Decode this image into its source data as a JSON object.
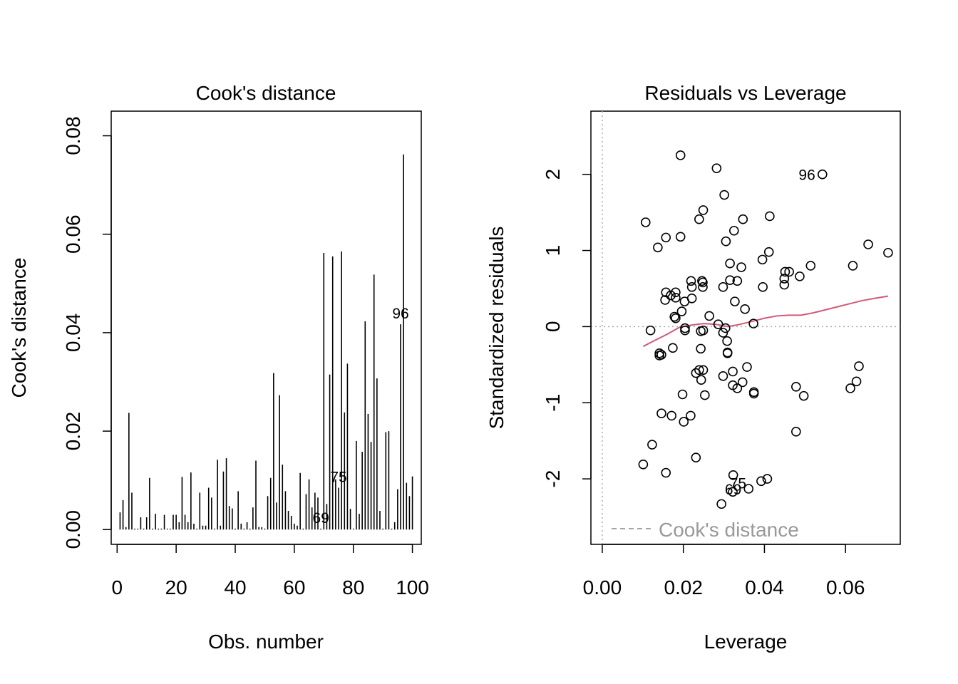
{
  "chart_data": [
    {
      "type": "bar",
      "title": "Cook's distance",
      "xlabel": "Obs. number",
      "ylabel": "Cook's distance",
      "xlim": [
        -2,
        103
      ],
      "ylim": [
        -0.003,
        0.085
      ],
      "x_ticks": [
        "0",
        "20",
        "40",
        "60",
        "80",
        "100"
      ],
      "y_ticks": [
        "0.00",
        "0.02",
        "0.04",
        "0.06",
        "0.08"
      ],
      "bar_color": "#000000",
      "x": [
        1,
        2,
        3,
        4,
        5,
        6,
        7,
        8,
        9,
        10,
        11,
        12,
        13,
        14,
        15,
        16,
        17,
        18,
        19,
        20,
        21,
        22,
        23,
        24,
        25,
        26,
        27,
        28,
        29,
        30,
        31,
        32,
        33,
        34,
        35,
        36,
        37,
        38,
        39,
        40,
        41,
        42,
        43,
        44,
        45,
        46,
        47,
        48,
        49,
        50,
        51,
        52,
        53,
        54,
        55,
        56,
        57,
        58,
        59,
        60,
        61,
        62,
        63,
        64,
        65,
        66,
        67,
        68,
        69,
        70,
        71,
        72,
        73,
        74,
        75,
        76,
        77,
        78,
        79,
        80,
        81,
        82,
        83,
        84,
        85,
        86,
        87,
        88,
        89,
        90,
        91,
        92,
        93,
        94,
        95,
        96,
        97,
        98,
        99,
        100
      ],
      "values": [
        0.0035,
        0.006,
        0.0005,
        0.0237,
        0.0075,
        0.0002,
        0.0002,
        0.0025,
        0.0002,
        0.0025,
        0.0105,
        0.0002,
        0.0032,
        0.0002,
        0.0002,
        0.003,
        0.0002,
        0.0002,
        0.003,
        0.003,
        0.0015,
        0.0107,
        0.003,
        0.0015,
        0.0116,
        0.0012,
        0.0002,
        0.0075,
        0.0008,
        0.0008,
        0.0085,
        0.0065,
        0.0002,
        0.0142,
        0.0008,
        0.0118,
        0.0145,
        0.0048,
        0.0043,
        0.0002,
        0.0078,
        0.0012,
        0.0002,
        0.0015,
        0.0002,
        0.0045,
        0.014,
        0.0005,
        0.0005,
        0.0002,
        0.0068,
        0.0105,
        0.0318,
        0.0055,
        0.0273,
        0.0132,
        0.0078,
        0.0038,
        0.0028,
        0.0012,
        0.0008,
        0.0115,
        0.0002,
        0.0072,
        0.0102,
        0.0045,
        0.0075,
        0.0065,
        0.0002,
        0.0562,
        0.0052,
        0.0315,
        0.0555,
        0.0102,
        0.0085,
        0.0565,
        0.0238,
        0.0337,
        0.0042,
        0.0002,
        0.018,
        0.0032,
        0.0158,
        0.0423,
        0.0235,
        0.0178,
        0.0518,
        0.0307,
        0.0038,
        0.0002,
        0.0198,
        0.02,
        0.0002,
        0.0015,
        0.0082,
        0.0417,
        0.0762,
        0.0095,
        0.0068,
        0.0108
      ],
      "labels": [
        {
          "x": 69,
          "text": "69"
        },
        {
          "x": 75,
          "text": "75"
        },
        {
          "x": 96,
          "text": "96"
        }
      ]
    },
    {
      "type": "scatter",
      "title": "Residuals vs Leverage",
      "xlabel": "Leverage",
      "ylabel": "Standardized residuals",
      "xlim": [
        -0.0028,
        0.0735
      ],
      "ylim": [
        -2.86,
        2.83
      ],
      "x_ticks": [
        "0.00",
        "0.02",
        "0.04",
        "0.06"
      ],
      "y_ticks": [
        "-2",
        "-1",
        "0",
        "1",
        "2"
      ],
      "smooth_color": "#d05a78",
      "legend": {
        "position": "bottom-left",
        "text": "Cook's distance",
        "color": "#999999"
      },
      "points": [
        [
          0.0193,
          2.25
        ],
        [
          0.0282,
          2.08
        ],
        [
          0.0543,
          2.0
        ],
        [
          0.0301,
          1.73
        ],
        [
          0.0249,
          1.53
        ],
        [
          0.0413,
          1.45
        ],
        [
          0.0347,
          1.41
        ],
        [
          0.0239,
          1.41
        ],
        [
          0.0107,
          1.37
        ],
        [
          0.0325,
          1.26
        ],
        [
          0.0157,
          1.17
        ],
        [
          0.0193,
          1.18
        ],
        [
          0.0305,
          1.12
        ],
        [
          0.0656,
          1.08
        ],
        [
          0.0137,
          1.04
        ],
        [
          0.0411,
          0.98
        ],
        [
          0.0705,
          0.97
        ],
        [
          0.0395,
          0.88
        ],
        [
          0.0315,
          0.83
        ],
        [
          0.0514,
          0.8
        ],
        [
          0.0618,
          0.8
        ],
        [
          0.0343,
          0.78
        ],
        [
          0.0451,
          0.72
        ],
        [
          0.0461,
          0.72
        ],
        [
          0.0449,
          0.63
        ],
        [
          0.0487,
          0.66
        ],
        [
          0.0219,
          0.6
        ],
        [
          0.0246,
          0.6
        ],
        [
          0.0248,
          0.58
        ],
        [
          0.0315,
          0.61
        ],
        [
          0.0333,
          0.6
        ],
        [
          0.0449,
          0.55
        ],
        [
          0.0221,
          0.52
        ],
        [
          0.0298,
          0.52
        ],
        [
          0.0248,
          0.52
        ],
        [
          0.0396,
          0.52
        ],
        [
          0.0157,
          0.45
        ],
        [
          0.0181,
          0.45
        ],
        [
          0.0169,
          0.41
        ],
        [
          0.0155,
          0.35
        ],
        [
          0.0181,
          0.38
        ],
        [
          0.0221,
          0.37
        ],
        [
          0.0203,
          0.33
        ],
        [
          0.0327,
          0.33
        ],
        [
          0.0352,
          0.23
        ],
        [
          0.0196,
          0.2
        ],
        [
          0.0264,
          0.14
        ],
        [
          0.0178,
          0.13
        ],
        [
          0.0181,
          0.11
        ],
        [
          0.0286,
          0.03
        ],
        [
          0.0373,
          0.04
        ],
        [
          0.0204,
          -0.02
        ],
        [
          0.0304,
          -0.02
        ],
        [
          0.0204,
          -0.05
        ],
        [
          0.0119,
          -0.05
        ],
        [
          0.0249,
          -0.05
        ],
        [
          0.0243,
          -0.06
        ],
        [
          0.0298,
          -0.08
        ],
        [
          0.0308,
          -0.19
        ],
        [
          0.0174,
          -0.28
        ],
        [
          0.0243,
          -0.29
        ],
        [
          0.0141,
          -0.35
        ],
        [
          0.0146,
          -0.37
        ],
        [
          0.0141,
          -0.38
        ],
        [
          0.0309,
          -0.34
        ],
        [
          0.0309,
          -0.35
        ],
        [
          0.0633,
          -0.52
        ],
        [
          0.0357,
          -0.53
        ],
        [
          0.0239,
          -0.57
        ],
        [
          0.0249,
          -0.57
        ],
        [
          0.0231,
          -0.61
        ],
        [
          0.0322,
          -0.59
        ],
        [
          0.0298,
          -0.65
        ],
        [
          0.0244,
          -0.7
        ],
        [
          0.0346,
          -0.73
        ],
        [
          0.0322,
          -0.77
        ],
        [
          0.0627,
          -0.72
        ],
        [
          0.0333,
          -0.81
        ],
        [
          0.0478,
          -0.79
        ],
        [
          0.0612,
          -0.81
        ],
        [
          0.0374,
          -0.86
        ],
        [
          0.0374,
          -0.88
        ],
        [
          0.0198,
          -0.89
        ],
        [
          0.0253,
          -0.9
        ],
        [
          0.0497,
          -0.91
        ],
        [
          0.0146,
          -1.14
        ],
        [
          0.0171,
          -1.17
        ],
        [
          0.0218,
          -1.17
        ],
        [
          0.0201,
          -1.25
        ],
        [
          0.0478,
          -1.38
        ],
        [
          0.0123,
          -1.55
        ],
        [
          0.0231,
          -1.72
        ],
        [
          0.0101,
          -1.81
        ],
        [
          0.0157,
          -1.92
        ],
        [
          0.0323,
          -1.95
        ],
        [
          0.0407,
          -2.0
        ],
        [
          0.0392,
          -2.03
        ],
        [
          0.0322,
          -2.17
        ],
        [
          0.0294,
          -2.33
        ],
        [
          0.0361,
          -2.13
        ]
      ],
      "smooth": [
        [
          0.0101,
          -0.26
        ],
        [
          0.013,
          -0.18
        ],
        [
          0.016,
          -0.1
        ],
        [
          0.019,
          -0.01
        ],
        [
          0.022,
          0.02
        ],
        [
          0.025,
          0.04
        ],
        [
          0.028,
          0.03
        ],
        [
          0.031,
          0.0
        ],
        [
          0.034,
          0.03
        ],
        [
          0.037,
          0.07
        ],
        [
          0.04,
          0.11
        ],
        [
          0.043,
          0.14
        ],
        [
          0.046,
          0.15
        ],
        [
          0.049,
          0.15
        ],
        [
          0.052,
          0.18
        ],
        [
          0.055,
          0.22
        ],
        [
          0.058,
          0.26
        ],
        [
          0.061,
          0.3
        ],
        [
          0.064,
          0.34
        ],
        [
          0.067,
          0.37
        ],
        [
          0.0705,
          0.4
        ]
      ],
      "labels": [
        {
          "x": 0.0543,
          "y": 2.0,
          "text": "96",
          "side": "left"
        },
        {
          "x": 0.0373,
          "y": -2.05,
          "text": "75",
          "side": "left"
        },
        {
          "x": 0.0361,
          "y": -2.13,
          "text": "69",
          "side": "left"
        }
      ]
    }
  ]
}
